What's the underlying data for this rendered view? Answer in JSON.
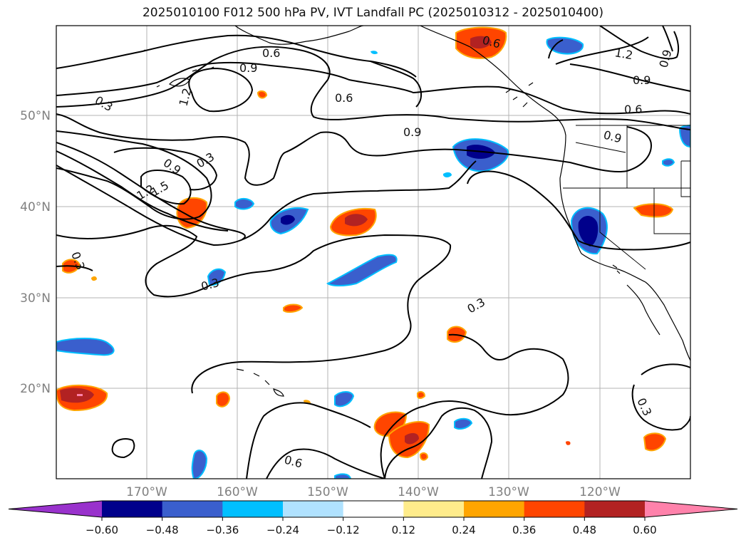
{
  "title": "2025010100 F012 500 hPa PV, IVT Landfall PC (2025010312 - 2025010400)",
  "map": {
    "lon_labels": [
      "170°W",
      "160°W",
      "150°W",
      "140°W",
      "130°W",
      "120°W"
    ],
    "lat_labels": [
      "50°N",
      "40°N",
      "30°N",
      "20°N"
    ],
    "contour_labels": [
      "0.6",
      "0.9",
      "1.2",
      "0.3",
      "0.6",
      "0.9",
      "0.6",
      "0.3",
      "0.9",
      "1.2",
      "1.5",
      "0.9",
      "1.2",
      "0.9",
      "0.9",
      "0.6",
      "0.3",
      "0.3",
      "0.3",
      "0.6",
      "0.3"
    ]
  },
  "colorbar": {
    "ticks": [
      "−0.60",
      "−0.48",
      "−0.36",
      "−0.24",
      "−0.12",
      "0.12",
      "0.24",
      "0.36",
      "0.48",
      "0.60"
    ],
    "colors": [
      "#9932cc",
      "#00008b",
      "#3a5fcd",
      "#00bfff",
      "#b0e2ff",
      "#ffffff",
      "#ffec8b",
      "#ffa500",
      "#ff4500",
      "#b22222",
      "#ff82ab"
    ]
  },
  "style": {
    "label_color": "#808080",
    "grid_color": "#b3b3b3"
  }
}
